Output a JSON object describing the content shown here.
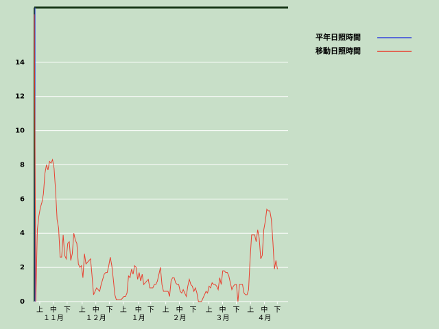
{
  "chart_data": {
    "type": "line",
    "ylim": [
      0,
      17.2
    ],
    "yticks": [
      0,
      2,
      4,
      6,
      8,
      10,
      12,
      14
    ],
    "grid": true,
    "xlim": [
      0,
      167
    ],
    "xticks": [
      {
        "value": 3.6,
        "label": "上"
      },
      {
        "value": 12.6,
        "label": "中"
      },
      {
        "value": 21.6,
        "label": "下"
      },
      {
        "value": 31.5,
        "label": "上"
      },
      {
        "value": 40.5,
        "label": "中"
      },
      {
        "value": 49.5,
        "label": "下"
      },
      {
        "value": 58.6,
        "label": "上"
      },
      {
        "value": 68.5,
        "label": "中"
      },
      {
        "value": 76.6,
        "label": "下"
      },
      {
        "value": 86.5,
        "label": "上"
      },
      {
        "value": 95.5,
        "label": "中"
      },
      {
        "value": 104.5,
        "label": "下"
      },
      {
        "value": 114.9,
        "label": "上"
      },
      {
        "value": 123.9,
        "label": "中"
      },
      {
        "value": 132.9,
        "label": "下"
      },
      {
        "value": 142.3,
        "label": "上"
      },
      {
        "value": 151.4,
        "label": "中"
      },
      {
        "value": 159.9,
        "label": "下"
      }
    ],
    "months": [
      "１１月",
      "１２月",
      "１月",
      "２月",
      "３月",
      "４月"
    ],
    "legend": "right",
    "series": [
      {
        "name": "平年日照時間",
        "color": "#3344dd",
        "x": [
          0.5,
          0.5
        ],
        "values": [
          0,
          17.2
        ]
      },
      {
        "name": "移動日照時間",
        "color": "#e84030",
        "values": [
          16.8,
          0,
          4.2,
          5.0,
          5.5,
          5.8,
          6.3,
          7.5,
          8.0,
          7.7,
          8.2,
          8.1,
          8.3,
          7.8,
          6.5,
          4.8,
          4.3,
          2.6,
          2.6,
          3.9,
          2.7,
          2.5,
          3.4,
          3.5,
          2.4,
          2.8,
          4.0,
          3.6,
          3.4,
          2.2,
          2.0,
          2.1,
          1.4,
          2.8,
          2.2,
          2.3,
          2.4,
          2.5,
          1.5,
          0.4,
          0.6,
          0.8,
          0.7,
          0.6,
          1.0,
          1.3,
          1.6,
          1.7,
          1.7,
          2.1,
          2.6,
          2.1,
          1.3,
          0.4,
          0.1,
          0.1,
          0.1,
          0.1,
          0.2,
          0.3,
          0.3,
          0.5,
          1.5,
          1.4,
          1.9,
          1.6,
          2.1,
          2.0,
          1.3,
          1.7,
          1.2,
          1.6,
          1.0,
          1.1,
          1.2,
          1.3,
          0.8,
          0.8,
          0.8,
          1.0,
          1.0,
          1.2,
          1.6,
          2.0,
          1.0,
          0.6,
          0.6,
          0.6,
          0.6,
          0.3,
          1.2,
          1.4,
          1.4,
          1.1,
          1.0,
          1.0,
          0.6,
          0.5,
          0.7,
          0.5,
          0.3,
          0.9,
          1.3,
          1.0,
          0.9,
          0.6,
          0.8,
          0.5,
          0.0,
          0.0,
          0.0,
          0.2,
          0.4,
          0.6,
          0.5,
          0.9,
          0.8,
          1.1,
          1.0,
          1.0,
          0.9,
          0.7,
          1.4,
          1.0,
          1.8,
          1.8,
          1.7,
          1.7,
          1.5,
          1.1,
          0.7,
          0.9,
          1.0,
          1.0,
          0.0,
          1.0,
          1.0,
          1.0,
          0.5,
          0.4,
          0.4,
          0.7,
          2.5,
          3.9,
          3.9,
          3.9,
          3.5,
          4.2,
          3.7,
          2.5,
          2.7,
          4.2,
          4.7,
          5.4,
          5.3,
          5.3,
          4.8,
          3.5,
          1.9,
          2.4,
          1.9
        ]
      }
    ]
  }
}
